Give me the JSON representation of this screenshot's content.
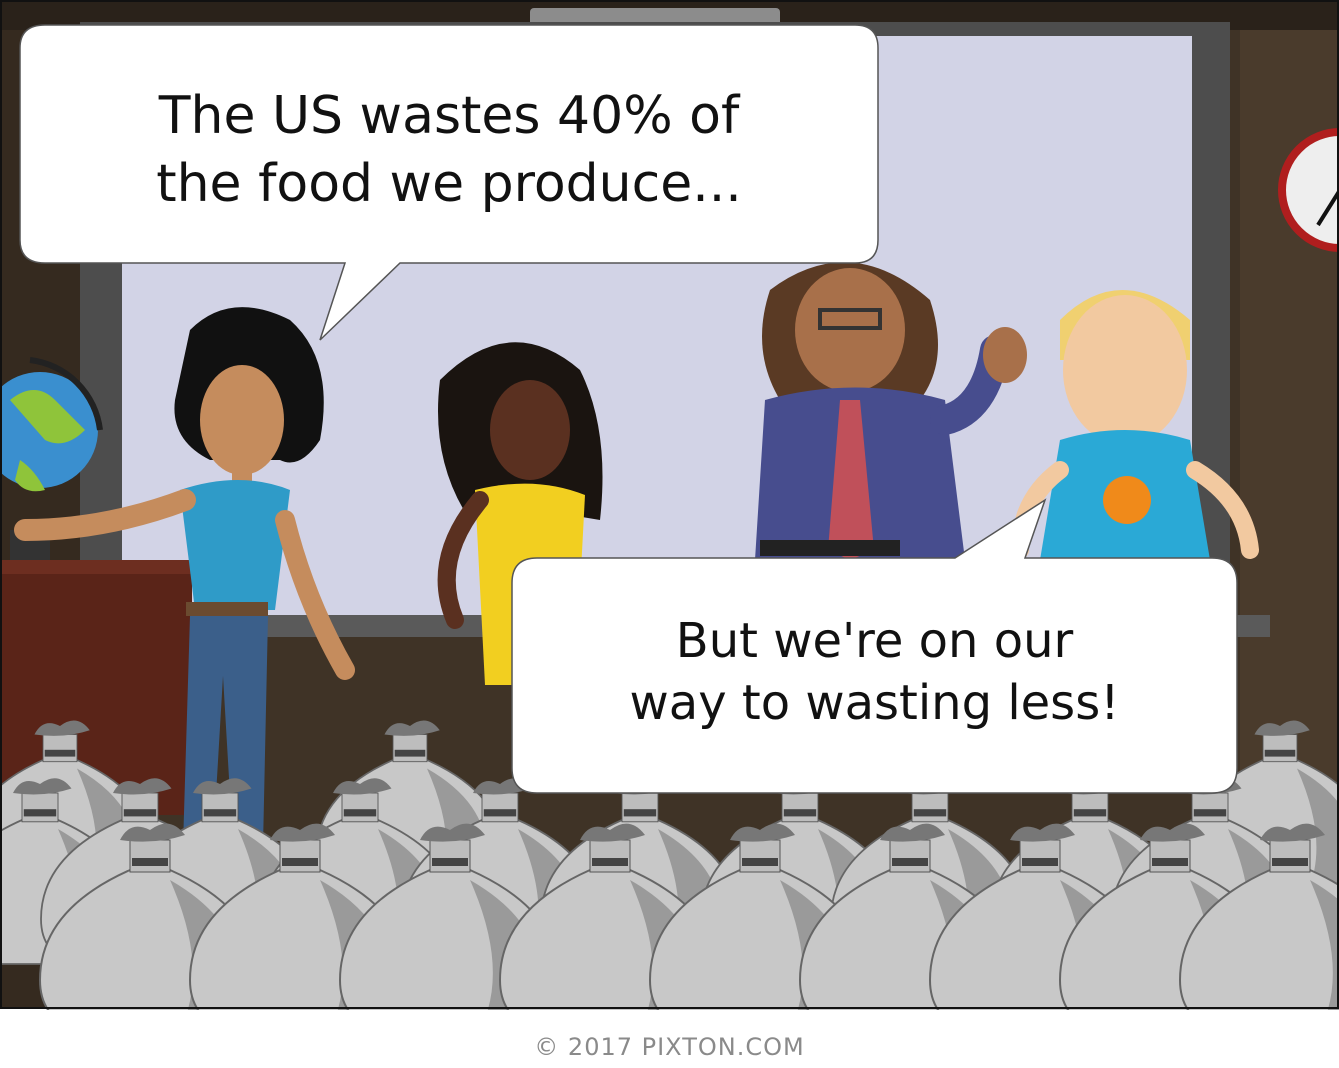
{
  "speech_bubbles": [
    {
      "id": "teacher",
      "lines": [
        "The US wastes 40% of",
        "the food we produce..."
      ]
    },
    {
      "id": "student",
      "lines": [
        "But we're on our",
        "way to wasting less!"
      ]
    }
  ],
  "credit": "© 2017 PIXTON.COM",
  "colors": {
    "wall": "#3f3326",
    "whiteboard": "#d2d3e6",
    "trash_bag": "#c8c8c8",
    "desk": "#5a2418"
  }
}
